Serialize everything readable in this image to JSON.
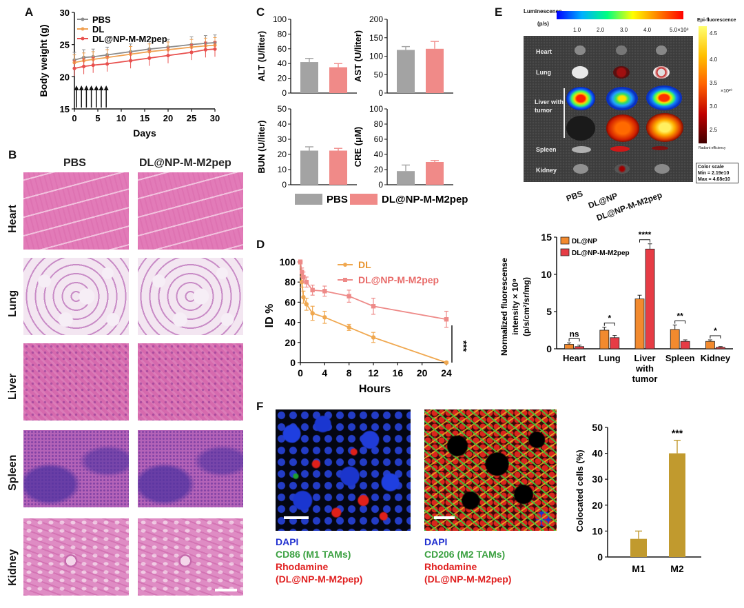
{
  "panel_letters": {
    "a": "A",
    "b": "B",
    "c": "C",
    "d": "D",
    "e": "E",
    "f": "F"
  },
  "panel_a": {
    "ylabel": "Body weight (g)",
    "xlabel": "Days",
    "xticks": [
      "0",
      "5",
      "10",
      "15",
      "20",
      "25",
      "30"
    ],
    "yticks": [
      "15",
      "20",
      "25",
      "30"
    ],
    "legend": [
      "PBS",
      "DL",
      "DL@NP-M-M2pep"
    ],
    "colors": {
      "PBS": "#8c8c8c",
      "DL": "#f0a050",
      "DL@NP-M-M2pep": "#e8504e"
    }
  },
  "panel_b": {
    "col_labels": [
      "PBS",
      "DL@NP-M-M2pep"
    ],
    "row_labels": [
      "Heart",
      "Lung",
      "Liver",
      "Spleen",
      "Kidney"
    ]
  },
  "panel_c": {
    "legend": [
      "PBS",
      "DL@NP-M-M2pep"
    ],
    "colors": {
      "PBS": "#a3a3a3",
      "DL@NP-M-M2pep": "#f08a88"
    }
  },
  "panel_d": {
    "ylabel": "ID %",
    "xlabel": "Hours",
    "legend": [
      "DL",
      "DL@NP-M-M2pep"
    ],
    "xticks": [
      "0",
      "4",
      "8",
      "12",
      "16",
      "20",
      "24"
    ],
    "yticks": [
      "0",
      "20",
      "40",
      "60",
      "80",
      "100"
    ],
    "sig": "***",
    "colors": {
      "DL": "#f0a850",
      "DL@NP-M-M2pep": "#ee8a88"
    }
  },
  "panel_e_image": {
    "luminescence_title": "Luminescence",
    "luminescence_unit": "(p/s)",
    "lum_ticks": [
      "1.0",
      "2.0",
      "3.0",
      "4.0",
      "5.0×10³"
    ],
    "epi_title": "Epi-fluorescence",
    "epi_ticks": [
      "4.5",
      "4.0",
      "3.5",
      "3.0",
      "2.5"
    ],
    "epi_exp": "×10¹⁰",
    "radiant_label": "Radiant efficiency",
    "organ_labels": [
      "Heart",
      "Lung",
      "Liver with tumor",
      "Spleen",
      "Kidney"
    ],
    "col_labels": [
      "PBS",
      "DL@NP",
      "DL@NP-M-M2pep"
    ],
    "color_scale_title": "Color scale",
    "color_scale_min": "Min = 2.19e10",
    "color_scale_max": "Max = 4.68e10"
  },
  "panel_e_bar": {
    "ylabel_line1": "Normalized fluorescense",
    "ylabel_line2": "intensity × 10⁹",
    "ylabel_line3": "(p/s/cm²/sr/mg)",
    "legend": [
      "DL@NP",
      "DL@NP-M-M2pep"
    ],
    "categories": [
      "Heart",
      "Lung",
      "Liver with tumor",
      "Spleen",
      "Kidney"
    ],
    "yticks": [
      "0",
      "5",
      "10",
      "15"
    ],
    "sig": [
      "ns",
      "*",
      "****",
      "**",
      "*"
    ],
    "colors": {
      "DL@NP": "#f28a2e",
      "DL@NP-M-M2pep": "#e63c45"
    }
  },
  "panel_f": {
    "m1_legend": [
      "DAPI",
      "CD86 (M1 TAMs)",
      "Rhodamine",
      "(DL@NP-M-M2pep)"
    ],
    "m2_legend": [
      "DAPI",
      "CD206 (M2 TAMs)",
      "Rhodamine",
      "(DL@NP-M-M2pep)"
    ],
    "legend_colors": [
      "#2030d0",
      "#3aa040",
      "#e02020",
      "#e02020"
    ],
    "bar_ylabel": "Colocated cells (%)",
    "bar_categories": [
      "M1",
      "M2"
    ],
    "bar_yticks": [
      "0",
      "10",
      "20",
      "30",
      "40",
      "50"
    ],
    "sig": "***",
    "bar_color": "#c19a2e"
  },
  "chart_data": [
    {
      "type": "line",
      "panel": "A",
      "xlabel": "Days",
      "ylabel": "Body weight (g)",
      "xlim": [
        0,
        30
      ],
      "ylim": [
        15,
        30
      ],
      "x": [
        0,
        2,
        4,
        7,
        12,
        16,
        20,
        25,
        28,
        30
      ],
      "series": [
        {
          "name": "PBS",
          "values": [
            22.6,
            23.0,
            23.1,
            23.4,
            23.9,
            24.3,
            24.6,
            25.0,
            25.2,
            25.3
          ]
        },
        {
          "name": "DL",
          "values": [
            22.2,
            22.5,
            22.7,
            23.0,
            23.5,
            23.9,
            24.2,
            24.6,
            24.8,
            24.9
          ]
        },
        {
          "name": "DL@NP-M-M2pep",
          "values": [
            21.3,
            21.6,
            21.8,
            22.0,
            22.5,
            22.9,
            23.3,
            23.8,
            24.2,
            24.3
          ]
        }
      ],
      "error": 1.2,
      "dosing_days": [
        0,
        1,
        2,
        3,
        4,
        5,
        6
      ]
    },
    {
      "type": "bar",
      "panel": "C-ALT",
      "ylabel": "ALT (U/liter)",
      "ylim": [
        0,
        100
      ],
      "yticks": [
        0,
        20,
        40,
        60,
        80,
        100
      ],
      "categories": [
        "PBS",
        "DL@NP-M-M2pep"
      ],
      "values": [
        42,
        35
      ],
      "errors": [
        5,
        5
      ]
    },
    {
      "type": "bar",
      "panel": "C-AST",
      "ylabel": "AST (U/liter)",
      "ylim": [
        0,
        200
      ],
      "yticks": [
        0,
        50,
        100,
        150,
        200
      ],
      "categories": [
        "PBS",
        "DL@NP-M-M2pep"
      ],
      "values": [
        117,
        120
      ],
      "errors": [
        9,
        20
      ]
    },
    {
      "type": "bar",
      "panel": "C-BUN",
      "ylabel": "BUN (U/liter)",
      "ylim": [
        0,
        50
      ],
      "yticks": [
        0,
        10,
        20,
        30,
        40,
        50
      ],
      "categories": [
        "PBS",
        "DL@NP-M-M2pep"
      ],
      "values": [
        22.5,
        22.5
      ],
      "errors": [
        2.5,
        1.5
      ]
    },
    {
      "type": "bar",
      "panel": "C-CRE",
      "ylabel": "CRE (μM)",
      "ylim": [
        0,
        100
      ],
      "yticks": [
        0,
        20,
        40,
        60,
        80,
        100
      ],
      "categories": [
        "PBS",
        "DL@NP-M-M2pep"
      ],
      "values": [
        18,
        30
      ],
      "errors": [
        8,
        2
      ]
    },
    {
      "type": "line",
      "panel": "D",
      "xlabel": "Hours",
      "ylabel": "ID %",
      "xlim": [
        0,
        24
      ],
      "ylim": [
        0,
        100
      ],
      "series": [
        {
          "name": "DL",
          "x": [
            0,
            0.25,
            0.5,
            1,
            2,
            4,
            8,
            12,
            24
          ],
          "values": [
            100,
            80,
            65,
            58,
            49,
            45,
            35,
            25,
            0
          ],
          "errors": [
            2,
            5,
            6,
            6,
            7,
            6,
            3,
            5,
            1
          ]
        },
        {
          "name": "DL@NP-M-M2pep",
          "x": [
            0,
            0.25,
            0.5,
            1,
            2,
            4,
            8,
            12,
            24
          ],
          "values": [
            100,
            90,
            85,
            80,
            72,
            71,
            66,
            56,
            43
          ],
          "errors": [
            2,
            4,
            5,
            5,
            5,
            5,
            6,
            8,
            8
          ]
        }
      ]
    },
    {
      "type": "bar",
      "panel": "E",
      "ylim": [
        0,
        15
      ],
      "categories": [
        "Heart",
        "Lung",
        "Liver with tumor",
        "Spleen",
        "Kidney"
      ],
      "series": [
        {
          "name": "DL@NP",
          "values": [
            0.6,
            2.5,
            6.7,
            2.6,
            1.0
          ],
          "errors": [
            0.2,
            0.4,
            0.5,
            0.6,
            0.2
          ]
        },
        {
          "name": "DL@NP-M-M2pep",
          "values": [
            0.3,
            1.5,
            13.4,
            1.0,
            0.2
          ],
          "errors": [
            0.2,
            0.3,
            0.7,
            0.2,
            0.1
          ]
        }
      ]
    },
    {
      "type": "bar",
      "panel": "F",
      "ylabel": "Colocated cells (%)",
      "ylim": [
        0,
        50
      ],
      "categories": [
        "M1",
        "M2"
      ],
      "values": [
        7,
        40
      ],
      "errors": [
        3,
        5
      ]
    }
  ]
}
